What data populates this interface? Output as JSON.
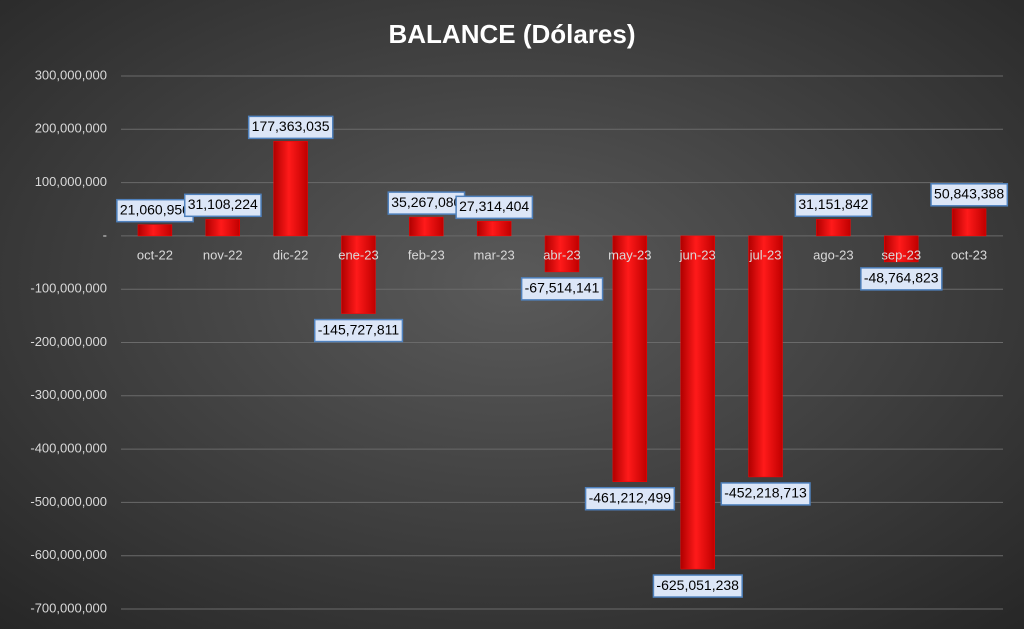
{
  "chart_data": {
    "type": "bar",
    "title": "BALANCE (Dólares)",
    "categories": [
      "oct-22",
      "nov-22",
      "dic-22",
      "ene-23",
      "feb-23",
      "mar-23",
      "abr-23",
      "may-23",
      "jun-23",
      "jul-23",
      "ago-23",
      "sep-23",
      "oct-23"
    ],
    "values": [
      21060950,
      31108224,
      177363035,
      -145727811,
      35267080,
      27314404,
      -67514141,
      -461212499,
      -625051238,
      -452218713,
      31151842,
      -48764823,
      50843388
    ],
    "value_labels": [
      "21,060,950",
      "31,108,224",
      "177,363,035",
      "-145,727,811",
      "35,267,080",
      "27,314,404",
      "-67,514,141",
      "-461,212,499",
      "-625,051,238",
      "-452,218,713",
      "31,151,842",
      "-48,764,823",
      "50,843,388"
    ],
    "color": "#ff0000",
    "ylim": [
      -700000000,
      300000000
    ],
    "yticks": [
      {
        "value": -700000000,
        "label": "-700,000,000"
      },
      {
        "value": -600000000,
        "label": "-600,000,000"
      },
      {
        "value": -500000000,
        "label": "-500,000,000"
      },
      {
        "value": -400000000,
        "label": "-400,000,000"
      },
      {
        "value": -300000000,
        "label": "-300,000,000"
      },
      {
        "value": -200000000,
        "label": "-200,000,000"
      },
      {
        "value": -100000000,
        "label": "-100,000,000"
      },
      {
        "value": 0,
        "label": "-"
      },
      {
        "value": 100000000,
        "label": "100,000,000"
      },
      {
        "value": 200000000,
        "label": "200,000,000"
      },
      {
        "value": 300000000,
        "label": "300,000,000"
      }
    ],
    "grid": true
  }
}
